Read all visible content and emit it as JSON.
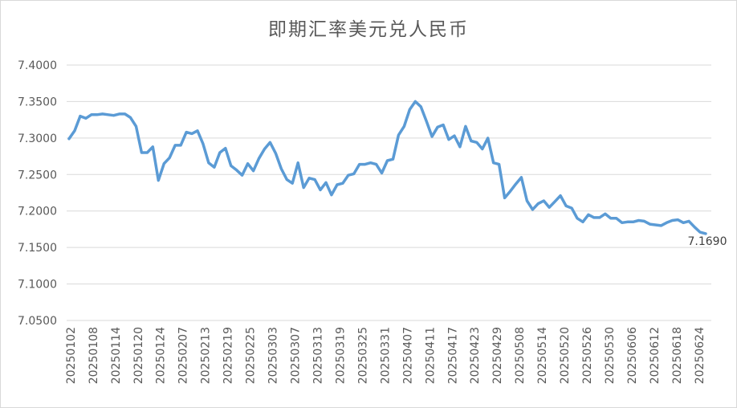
{
  "chart_data": {
    "type": "line",
    "title": "即期汇率美元兑人民币",
    "xlabel": "",
    "ylabel": "",
    "ylim": [
      7.05,
      7.4
    ],
    "y_ticks": [
      "7.0500",
      "7.1000",
      "7.1500",
      "7.2000",
      "7.2500",
      "7.3000",
      "7.3500",
      "7.4000"
    ],
    "x_tick_labels": [
      "20250102",
      "20250108",
      "20250114",
      "20250120",
      "20250124",
      "20250207",
      "20250213",
      "20250219",
      "20250225",
      "20250303",
      "20250307",
      "20250313",
      "20250319",
      "20250325",
      "20250331",
      "20250407",
      "20250411",
      "20250417",
      "20250423",
      "20250429",
      "20250508",
      "20250514",
      "20250520",
      "20250526",
      "20250530",
      "20250606",
      "20250612",
      "20250618",
      "20250624"
    ],
    "grid": true,
    "legend": "none",
    "line_color": "#5b9bd5",
    "series": [
      {
        "values": [
          7.299,
          7.31,
          7.33,
          7.327,
          7.332,
          7.332,
          7.333,
          7.332,
          7.331,
          7.333,
          7.333,
          7.328,
          7.316,
          7.28,
          7.28,
          7.288,
          7.242,
          7.265,
          7.273,
          7.29,
          7.29,
          7.308,
          7.306,
          7.31,
          7.292,
          7.266,
          7.26,
          7.28,
          7.286,
          7.262,
          7.256,
          7.249,
          7.265,
          7.255,
          7.272,
          7.285,
          7.294,
          7.279,
          7.258,
          7.243,
          7.238,
          7.266,
          7.232,
          7.245,
          7.243,
          7.229,
          7.239,
          7.222,
          7.236,
          7.238,
          7.249,
          7.251,
          7.264,
          7.264,
          7.266,
          7.264,
          7.252,
          7.269,
          7.271,
          7.304,
          7.316,
          7.339,
          7.35,
          7.343,
          7.323,
          7.302,
          7.315,
          7.318,
          7.298,
          7.303,
          7.288,
          7.316,
          7.296,
          7.294,
          7.285,
          7.3,
          7.266,
          7.264,
          7.218,
          7.227,
          7.237,
          7.246,
          7.214,
          7.202,
          7.21,
          7.214,
          7.205,
          7.213,
          7.221,
          7.207,
          7.204,
          7.19,
          7.185,
          7.195,
          7.191,
          7.191,
          7.196,
          7.19,
          7.19,
          7.184,
          7.185,
          7.185,
          7.187,
          7.186,
          7.182,
          7.181,
          7.18,
          7.184,
          7.187,
          7.188,
          7.184,
          7.186,
          7.178,
          7.171,
          7.169
        ]
      }
    ],
    "last_label": "7.1690"
  }
}
